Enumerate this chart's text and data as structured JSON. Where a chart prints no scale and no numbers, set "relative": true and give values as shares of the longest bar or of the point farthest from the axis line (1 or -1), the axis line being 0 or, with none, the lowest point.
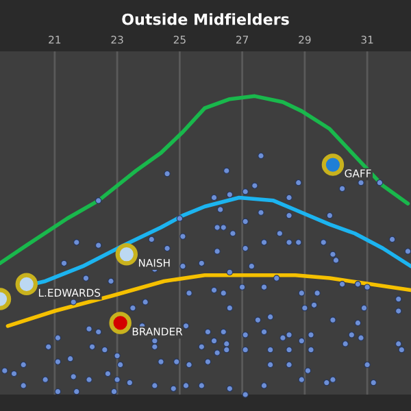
{
  "chart_data": {
    "type": "line",
    "title": "Outside Midfielders",
    "relative": true,
    "xlim": [
      19.25,
      32.4
    ],
    "xticks": [
      21,
      23,
      25,
      27,
      29,
      31
    ],
    "grid": "x",
    "series": [
      {
        "type": "scatter",
        "marker": "circle",
        "color": "#6d8fd6",
        "x": [
          24.6,
          22.4,
          25.0,
          25.1,
          24.1,
          21.7,
          27.6,
          26.5,
          28.8,
          30.2,
          30.8,
          31.4,
          26.1,
          26.6,
          27.1,
          27.4,
          28.5,
          26.3,
          27.6,
          28.5,
          27.1,
          29.8,
          26.2,
          26.4,
          26.7,
          27.7,
          28.2,
          28.5,
          28.8,
          29.6,
          31.8,
          22.4,
          24.6,
          21.3,
          22.0,
          22.8,
          25.7,
          25.1,
          24.2,
          21.6,
          23.5,
          23.9,
          25.3,
          21.1,
          22.1,
          22.4,
          23.8,
          24.2,
          25.2,
          20.8,
          22.2,
          22.6,
          23.0,
          24.2,
          25.7,
          20.0,
          19.4,
          19.7,
          21.1,
          21.5,
          23.1,
          24.4,
          24.9,
          25.3,
          20.7,
          21.6,
          22.1,
          22.7,
          23.0,
          23.4,
          20.0,
          21.1,
          21.7,
          22.9,
          24.2,
          24.8,
          25.2,
          25.7,
          26.2,
          27.1,
          29.9,
          30.0,
          27.3,
          32.3,
          26.6,
          26.1,
          26.4,
          27.0,
          27.7,
          28.1,
          28.9,
          29.4,
          30.2,
          30.7,
          31.0,
          26.6,
          29.0,
          29.3,
          29.9,
          30.9,
          32.0,
          32.0,
          27.9,
          27.5,
          30.7,
          25.9,
          26.4,
          27.1,
          27.7,
          29.2,
          30.5,
          28.3,
          28.5,
          26.1,
          26.5,
          28.9,
          30.3,
          30.8,
          32.0,
          26.5,
          27.1,
          27.9,
          28.5,
          29.2,
          32.1,
          26.2,
          25.9,
          27.9,
          28.5,
          31.0,
          29.1,
          28.9,
          29.7,
          29.9,
          31.2,
          26.6,
          27.7,
          27.1
        ],
        "values": [
          0.74,
          0.65,
          0.59,
          0.53,
          0.52,
          0.51,
          0.8,
          0.75,
          0.71,
          0.69,
          0.71,
          0.71,
          0.66,
          0.67,
          0.68,
          0.7,
          0.66,
          0.62,
          0.61,
          0.6,
          0.58,
          0.6,
          0.56,
          0.56,
          0.54,
          0.51,
          0.54,
          0.51,
          0.51,
          0.51,
          0.52,
          0.5,
          0.49,
          0.44,
          0.39,
          0.38,
          0.44,
          0.43,
          0.42,
          0.31,
          0.29,
          0.31,
          0.34,
          0.19,
          0.22,
          0.21,
          0.23,
          0.16,
          0.23,
          0.16,
          0.16,
          0.15,
          0.13,
          0.18,
          0.16,
          0.1,
          0.08,
          0.07,
          0.11,
          0.12,
          0.1,
          0.11,
          0.11,
          0.1,
          0.05,
          0.06,
          0.05,
          0.07,
          0.05,
          0.04,
          0.03,
          0.01,
          0.01,
          0.01,
          0.03,
          0.02,
          0.03,
          0.03,
          0.48,
          0.49,
          0.47,
          0.45,
          0.43,
          0.48,
          0.41,
          0.35,
          0.34,
          0.36,
          0.36,
          0.39,
          0.34,
          0.34,
          0.37,
          0.37,
          0.36,
          0.29,
          0.29,
          0.3,
          0.25,
          0.29,
          0.32,
          0.28,
          0.26,
          0.25,
          0.24,
          0.21,
          0.21,
          0.2,
          0.21,
          0.2,
          0.2,
          0.19,
          0.2,
          0.18,
          0.17,
          0.18,
          0.17,
          0.19,
          0.17,
          0.15,
          0.15,
          0.15,
          0.15,
          0.15,
          0.15,
          0.14,
          0.11,
          0.1,
          0.1,
          0.1,
          0.08,
          0.05,
          0.04,
          0.05,
          0.04,
          0.02,
          0.03,
          0.0
        ]
      },
      {
        "color": "#19b84c",
        "x": [
          19.25,
          20.1,
          21.4,
          22.4,
          23.6,
          24.4,
          25.1,
          25.8,
          26.6,
          27.4,
          28.3,
          28.9,
          29.8,
          30.6,
          31.5,
          32.3
        ],
        "values": [
          0.44,
          0.5,
          0.59,
          0.65,
          0.75,
          0.81,
          0.88,
          0.96,
          0.99,
          1.0,
          0.98,
          0.95,
          0.89,
          0.8,
          0.7,
          0.64
        ]
      },
      {
        "color": "#1cb4f0",
        "x": [
          19.9,
          20.7,
          21.9,
          23.2,
          24.4,
          25.1,
          25.8,
          26.9,
          28.0,
          28.9,
          29.8,
          30.6,
          31.5,
          32.4
        ],
        "values": [
          0.36,
          0.38,
          0.43,
          0.5,
          0.56,
          0.6,
          0.63,
          0.66,
          0.65,
          0.61,
          0.57,
          0.54,
          0.49,
          0.43
        ]
      },
      {
        "color": "#f5c000",
        "x": [
          19.5,
          21.0,
          22.8,
          24.5,
          25.8,
          27.1,
          28.7,
          29.8,
          31.1,
          32.4
        ],
        "values": [
          0.23,
          0.28,
          0.33,
          0.38,
          0.4,
          0.4,
          0.4,
          0.39,
          0.37,
          0.35
        ]
      },
      {
        "type": "bubble",
        "marker": "circle",
        "color": "#bcd8f2",
        "x": [
          19.25
        ],
        "values": [
          0.32
        ],
        "sizes": [
          1
        ]
      },
      {
        "type": "bubble",
        "marker": "circle",
        "name": "L.EDWARDS",
        "color": "#bcd8f2",
        "x": [
          20.1
        ],
        "values": [
          0.37
        ],
        "sizes": [
          1
        ]
      },
      {
        "type": "bubble",
        "marker": "circle",
        "name": "NAISH",
        "color": "#bcd8f2",
        "x": [
          23.3
        ],
        "values": [
          0.47
        ],
        "sizes": [
          1
        ]
      },
      {
        "type": "bubble",
        "marker": "circle",
        "name": "BRANDER",
        "color": "#d40000",
        "x": [
          23.1
        ],
        "values": [
          0.24
        ],
        "sizes": [
          1
        ]
      },
      {
        "type": "bubble",
        "marker": "circle",
        "name": "GAFF",
        "color": "#1f7fd6",
        "x": [
          29.9
        ],
        "values": [
          0.77
        ],
        "sizes": [
          1
        ]
      }
    ]
  }
}
